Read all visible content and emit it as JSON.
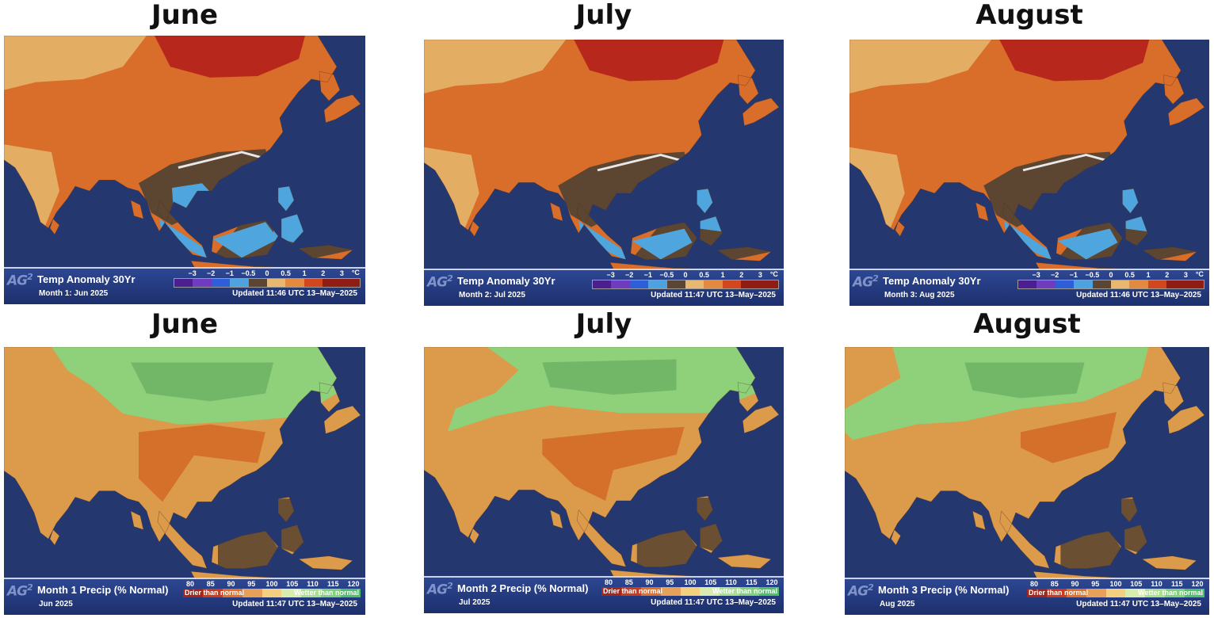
{
  "temperature_row": {
    "panels": [
      {
        "title": "June",
        "map_title": "Temp Anomaly 30Yr",
        "subtitle": "Month 1: Jun  2025",
        "updated": "Updated 11:46 UTC 13–May–2025"
      },
      {
        "title": "July",
        "map_title": "Temp Anomaly 30Yr",
        "subtitle": "Month 2: Jul  2025",
        "updated": "Updated 11:47 UTC 13–May–2025"
      },
      {
        "title": "August",
        "map_title": "Temp Anomaly 30Yr",
        "subtitle": "Month 3: Aug  2025",
        "updated": "Updated 11:46 UTC 13–May–2025"
      }
    ],
    "legend": {
      "ticks": [
        "−3",
        "−2",
        "−1",
        "−0.5",
        "0",
        "0.5",
        "1",
        "2",
        "3"
      ],
      "unit": "°C",
      "colors": [
        "#4b1f8f",
        "#6f3cc0",
        "#2e5fd8",
        "#4da3e0",
        "#5a4632",
        "#e8b870",
        "#e38a40",
        "#d2471d",
        "#8f1d14"
      ]
    }
  },
  "precip_row": {
    "panels": [
      {
        "title": "June",
        "map_title": "Month 1 Precip (% Normal)",
        "subtitle": "Jun  2025",
        "updated": "Updated 11:47 UTC 13–May–2025"
      },
      {
        "title": "July",
        "map_title": "Month 2 Precip (% Normal)",
        "subtitle": "Jul  2025",
        "updated": "Updated 11:47 UTC 13–May–2025"
      },
      {
        "title": "August",
        "map_title": "Month 3 Precip (% Normal)",
        "subtitle": "Aug  2025",
        "updated": "Updated 11:47 UTC 13–May–2025"
      }
    ],
    "legend": {
      "ticks": [
        "80",
        "85",
        "90",
        "95",
        "100",
        "105",
        "110",
        "115",
        "120"
      ],
      "drier": "Drier than normal",
      "wetter": "Wetter than normal",
      "colors": [
        "#a2261b",
        "#c83b1e",
        "#e0702c",
        "#e7a05a",
        "#f2d080",
        "#d8ecb0",
        "#a8e08c",
        "#7fd37a",
        "#4fbf6a"
      ]
    }
  },
  "logo": {
    "text": "AG",
    "sup": "2"
  },
  "colors": {
    "ocean": "#24376f",
    "temp_warm": "#d96d2a",
    "temp_hot": "#b8271b",
    "temp_light": "#e3ad63",
    "temp_near": "#5d4631",
    "temp_cool": "#4fa6de",
    "precip_dry": "#dc9a4b",
    "precip_drier": "#d4702a",
    "precip_wet": "#8fd07a",
    "precip_wetter": "#72b768",
    "precip_neutral": "#6b4f33"
  }
}
